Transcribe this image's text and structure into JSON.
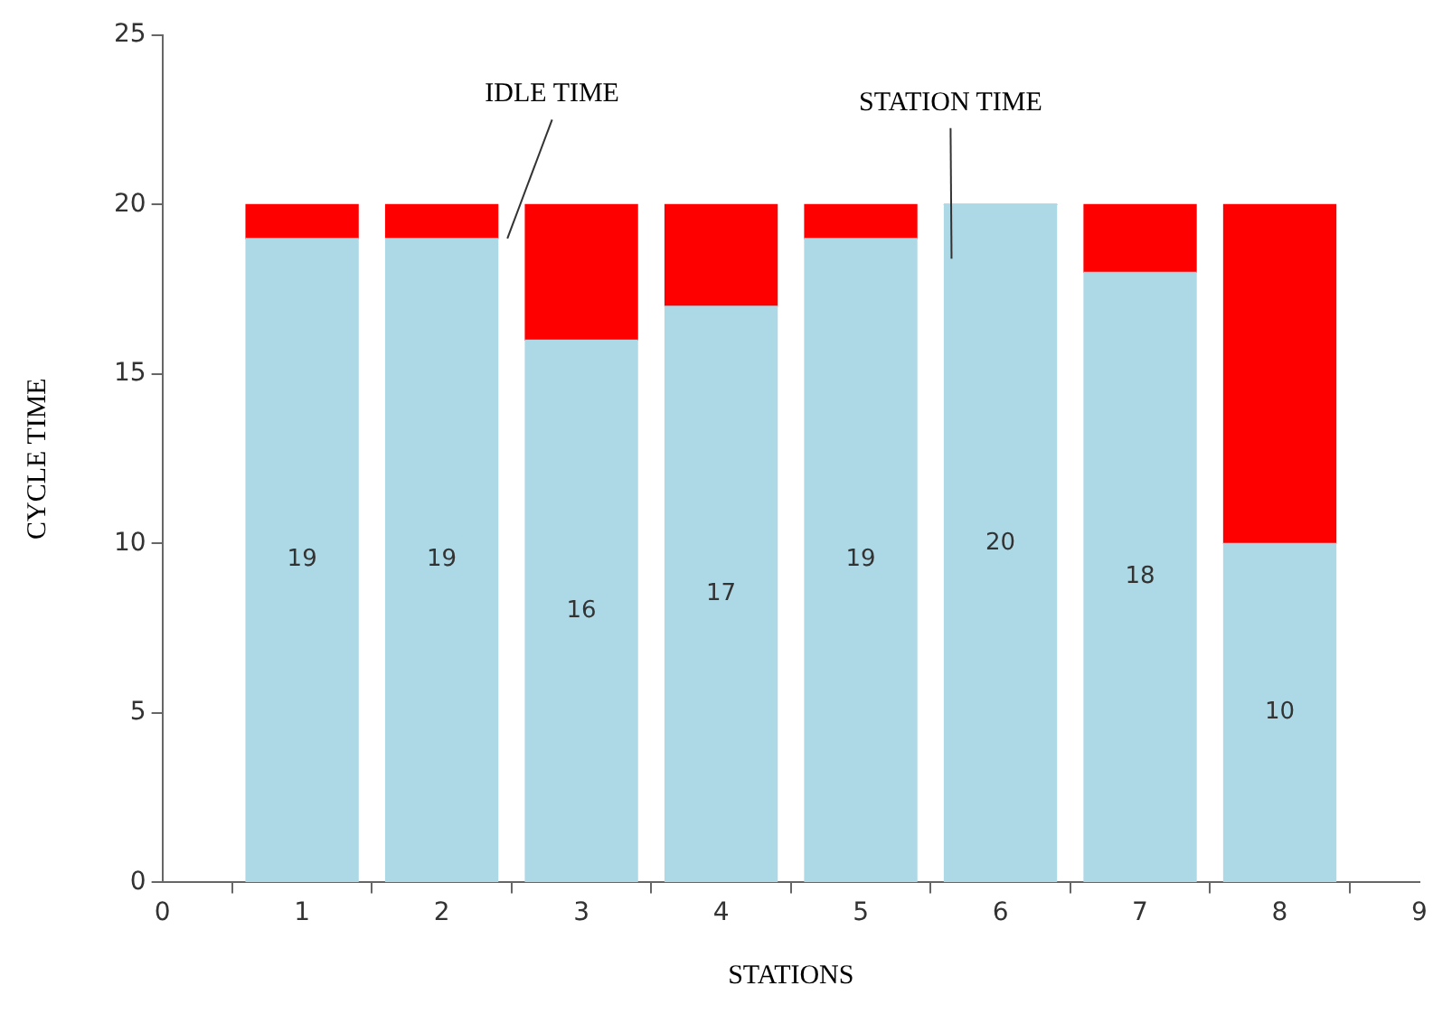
{
  "chart_data": {
    "type": "bar",
    "stacked": true,
    "xlabel": "STATIONS",
    "ylabel": "CYCLE TIME",
    "x": [
      1,
      2,
      3,
      4,
      5,
      6,
      7,
      8
    ],
    "series": [
      {
        "color": "#add8e6",
        "values": [
          19,
          19,
          16,
          17,
          19,
          20,
          18,
          10
        ],
        "value_labels": [
          "19",
          "19",
          "16",
          "17",
          "19",
          "20",
          "18",
          "10"
        ]
      },
      {
        "color": "#ff0000",
        "values": [
          1,
          1,
          4,
          3,
          1,
          0,
          2,
          10
        ]
      }
    ],
    "xlim": [
      0,
      9
    ],
    "xticks": [
      0,
      1,
      2,
      3,
      4,
      5,
      6,
      7,
      8,
      9
    ],
    "ylim": [
      0,
      25
    ],
    "yticks": [
      0,
      5,
      10,
      15,
      20,
      25
    ],
    "grid": false,
    "legend": false,
    "annotations": [
      {
        "text": "IDLE TIME",
        "x": 2.47,
        "y": 19
      },
      {
        "text": "STATION TIME",
        "x": 5.65,
        "y": 18.4
      }
    ]
  }
}
